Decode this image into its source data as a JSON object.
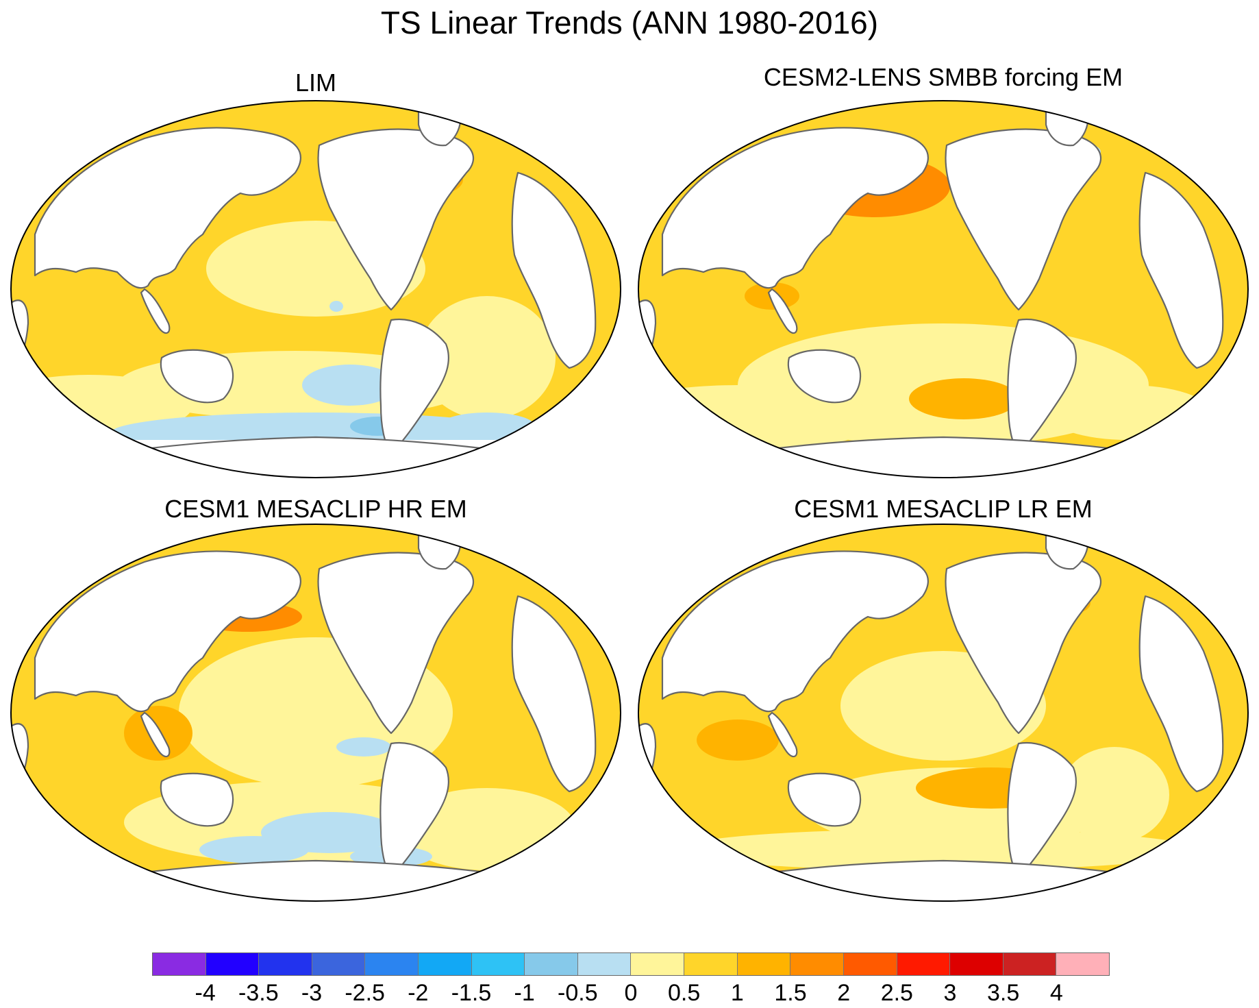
{
  "title": "TS Linear Trends (ANN 1980-2016)",
  "panels": [
    {
      "title": "LIM",
      "scheme": "lim"
    },
    {
      "title": "CESM2-LENS SMBB forcing EM",
      "scheme": "cesm2"
    },
    {
      "title": "CESM1 MESACLIP HR EM",
      "scheme": "hr"
    },
    {
      "title": "CESM1 MESACLIP LR EM",
      "scheme": "lr"
    }
  ],
  "colorbar": {
    "labels": [
      "-4",
      "-3.5",
      "-3",
      "-2.5",
      "-2",
      "-1.5",
      "-1",
      "-0.5",
      "0",
      "0.5",
      "1",
      "1.5",
      "2",
      "2.5",
      "3",
      "3.5",
      "4"
    ],
    "colors": [
      "#8a2be2",
      "#2200ff",
      "#2233ee",
      "#3b65dd",
      "#2b84f0",
      "#12a8f5",
      "#2ec2f5",
      "#86c9ea",
      "#b8dff2",
      "#fff59a",
      "#ffd52a",
      "#ffb300",
      "#ff8c00",
      "#ff5a00",
      "#ff1a00",
      "#dd0000",
      "#cc2222",
      "#ffb0b8"
    ]
  }
}
